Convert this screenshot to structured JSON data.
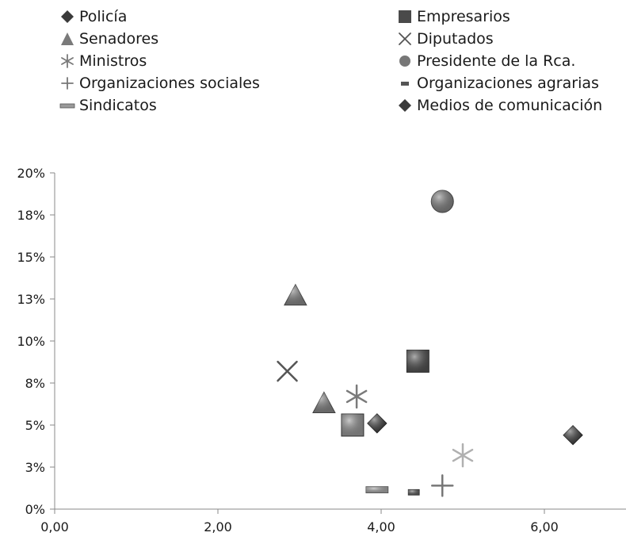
{
  "chart_data": {
    "type": "scatter",
    "title": "",
    "xlabel": "",
    "ylabel": "",
    "xlim": [
      0,
      7
    ],
    "ylim": [
      0,
      20
    ],
    "x_ticks": [
      {
        "value": 0,
        "label": "0,00"
      },
      {
        "value": 2,
        "label": "2,00"
      },
      {
        "value": 4,
        "label": "4,00"
      },
      {
        "value": 6,
        "label": "6,00"
      }
    ],
    "y_ticks": [
      {
        "value": 0,
        "label": "0%"
      },
      {
        "value": 2.5,
        "label": "3%"
      },
      {
        "value": 5,
        "label": "5%"
      },
      {
        "value": 7.5,
        "label": "8%"
      },
      {
        "value": 10,
        "label": "10%"
      },
      {
        "value": 12.5,
        "label": "13%"
      },
      {
        "value": 15,
        "label": "15%"
      },
      {
        "value": 17.5,
        "label": "18%"
      },
      {
        "value": 20,
        "label": "20%"
      }
    ],
    "grid": false,
    "legend_position": "top",
    "series": [
      {
        "name": "Policía",
        "marker": "diamond",
        "color": "#3a3a3a",
        "points": [
          {
            "x": 3.95,
            "y": 5.1
          }
        ]
      },
      {
        "name": "Empresarios",
        "marker": "square",
        "color": "#4a4a4a",
        "points": [
          {
            "x": 4.45,
            "y": 8.8
          }
        ]
      },
      {
        "name": "Senadores",
        "marker": "triangle",
        "color": "#7a7a7a",
        "points": [
          {
            "x": 2.95,
            "y": 12.7
          },
          {
            "x": 3.3,
            "y": 6.3
          }
        ]
      },
      {
        "name": "Diputados",
        "marker": "x",
        "color": "#555555",
        "points": [
          {
            "x": 2.85,
            "y": 8.2
          }
        ]
      },
      {
        "name": "Ministros",
        "marker": "star",
        "color": "#7a7a7a",
        "points": [
          {
            "x": 3.7,
            "y": 6.7
          }
        ]
      },
      {
        "name": "Presidente de la Rca.",
        "marker": "circle",
        "color": "#777777",
        "points": [
          {
            "x": 4.75,
            "y": 18.3
          }
        ]
      },
      {
        "name": "Organizaciones sociales",
        "marker": "plus",
        "color": "#777777",
        "points": [
          {
            "x": 4.75,
            "y": 1.4
          }
        ]
      },
      {
        "name": "Organizaciones agrarias",
        "marker": "dash",
        "color": "#555555",
        "points": [
          {
            "x": 4.4,
            "y": 1.0
          }
        ]
      },
      {
        "name": "Sindicatos",
        "marker": "bar",
        "color": "#9a9a9a",
        "points": [
          {
            "x": 3.95,
            "y": 1.15
          }
        ]
      },
      {
        "name": "Medios de comunicación",
        "marker": "diamond",
        "color": "#3a3a3a",
        "points": [
          {
            "x": 6.35,
            "y": 4.4
          }
        ]
      },
      {
        "name": "",
        "marker": "square",
        "color": "#8a8a8a",
        "points": [
          {
            "x": 3.65,
            "y": 5.0
          }
        ]
      },
      {
        "name": "",
        "marker": "star",
        "color": "#b0b0b0",
        "points": [
          {
            "x": 5.0,
            "y": 3.2
          }
        ]
      }
    ]
  }
}
